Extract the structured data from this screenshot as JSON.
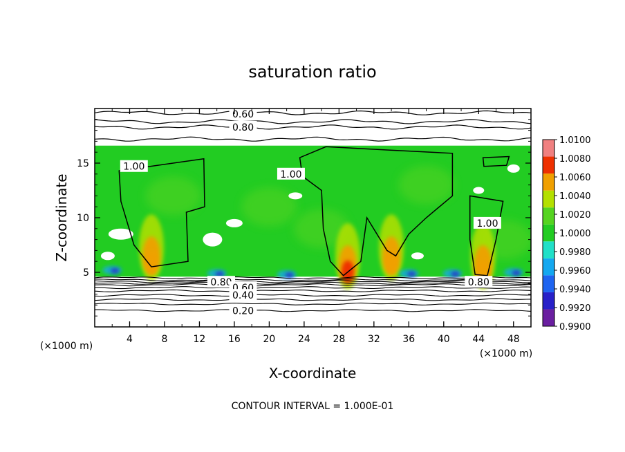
{
  "chart_data": {
    "type": "heatmap",
    "title": "saturation ratio",
    "xlabel": "X-coordinate",
    "ylabel": "Z-coordinate",
    "x_unit": "(×1000 m)",
    "x_unit_right": "(×1000 m)",
    "xlim": [
      0,
      50
    ],
    "ylim": [
      0,
      20
    ],
    "xticks": [
      4,
      8,
      12,
      16,
      20,
      24,
      28,
      32,
      36,
      40,
      44,
      48
    ],
    "xtick_labels": [
      "4",
      "8",
      "12",
      "16",
      "20",
      "24",
      "28",
      "32",
      "36",
      "40",
      "44",
      "48"
    ],
    "yticks": [
      5,
      10,
      15
    ],
    "ytick_labels": [
      "5",
      "10",
      "15"
    ],
    "colorbar": {
      "min": 0.99,
      "max": 1.01,
      "labels": [
        "1.0100",
        "1.0080",
        "1.0060",
        "1.0040",
        "1.0020",
        "1.0000",
        "0.9980",
        "0.9960",
        "0.9940",
        "0.9920",
        "0.9900"
      ],
      "colors": [
        "#6a1fa0",
        "#2820c8",
        "#1e64f0",
        "#14a8f0",
        "#20e0c8",
        "#22cc22",
        "#55d420",
        "#b4e000",
        "#f0a000",
        "#ee3000",
        "#f08080"
      ]
    },
    "field_approx": {
      "base_value": 1.0,
      "domain_z": [
        4.6,
        16.6
      ],
      "updraft_peaks": [
        {
          "x": 6.5,
          "z": 6.0,
          "value": 1.0055
        },
        {
          "x": 29.0,
          "z": 5.2,
          "value": 1.0065
        },
        {
          "x": 34.0,
          "z": 6.0,
          "value": 1.0058
        },
        {
          "x": 44.5,
          "z": 5.2,
          "value": 1.006
        }
      ]
    },
    "contour_labels": [
      {
        "text": "0.60",
        "x": 17.0,
        "z": 19.5
      },
      {
        "text": "0.80",
        "x": 17.0,
        "z": 18.3
      },
      {
        "text": "1.00",
        "x": 4.5,
        "z": 14.7
      },
      {
        "text": "1.00",
        "x": 22.5,
        "z": 14.0
      },
      {
        "text": "1.00",
        "x": 45.0,
        "z": 9.5
      },
      {
        "text": "0.80",
        "x": 14.5,
        "z": 4.1
      },
      {
        "text": "0.60",
        "x": 17.0,
        "z": 3.6
      },
      {
        "text": "0.40",
        "x": 17.0,
        "z": 2.9
      },
      {
        "text": "0.20",
        "x": 17.0,
        "z": 1.5
      },
      {
        "text": "0.80",
        "x": 44.0,
        "z": 4.1
      }
    ],
    "contour_interval_text": "CONTOUR INTERVAL = 1.000E-01"
  }
}
